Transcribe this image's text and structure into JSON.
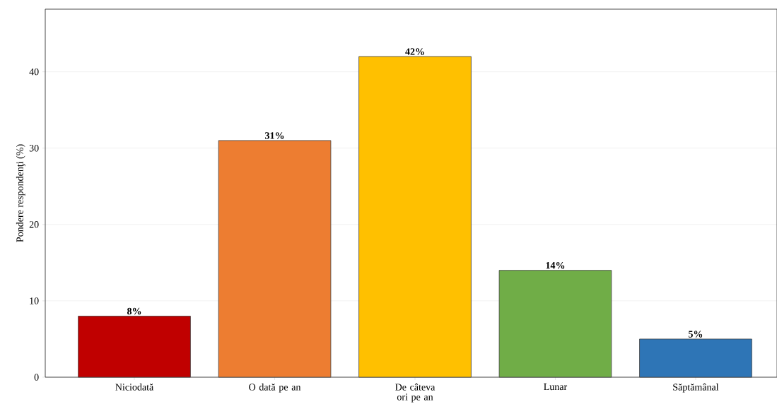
{
  "chart_data": {
    "type": "bar",
    "ylabel": "Pondere respondenţi (%)",
    "categories": [
      "Niciodată",
      "O dată pe an",
      "De câteva ori pe an",
      "Lunar",
      "Săptămânal"
    ],
    "values": [
      8,
      31,
      42,
      14,
      5
    ],
    "value_labels": [
      "8%",
      "31%",
      "42%",
      "14%",
      "5%"
    ],
    "colors": [
      "#c00000",
      "#ed7d31",
      "#ffc000",
      "#70ad47",
      "#2e75b6"
    ],
    "ylim": [
      0,
      48.2
    ],
    "yticks": [
      0,
      10,
      20,
      30,
      40
    ],
    "grid": "y"
  }
}
